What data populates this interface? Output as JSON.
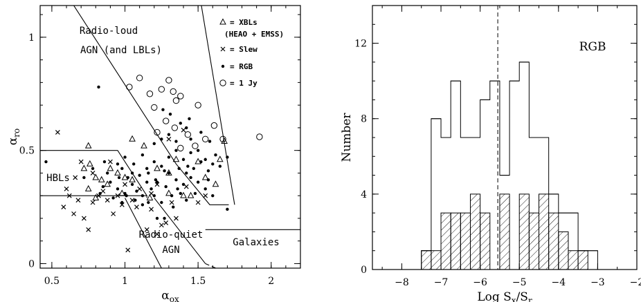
{
  "chart_data": [
    {
      "type": "scatter",
      "xlabel": "α",
      "xlabel_sub": "ox",
      "ylabel": "α",
      "ylabel_sub": "ro",
      "xlim": [
        0.42,
        2.2
      ],
      "ylim": [
        -0.02,
        1.14
      ],
      "xticks": [
        "0.5",
        "1",
        "1.5",
        "2"
      ],
      "yticks": [
        "0",
        "0.5",
        "1"
      ],
      "legend": [
        {
          "symbol": "triangle",
          "label": "= XBLs",
          "sub": "(HEAO + EMSS)"
        },
        {
          "symbol": "cross",
          "label": "= Slew"
        },
        {
          "symbol": "dot",
          "label": "= RGB"
        },
        {
          "symbol": "circle",
          "label": "= 1 Jy"
        }
      ],
      "region_labels": {
        "radio_loud": "Radio-loud",
        "radio_loud_2": "AGN (and LBLs)",
        "hbls": "HBLs",
        "radio_quiet": "Radio-quiet",
        "radio_quiet_2": "AGN",
        "galaxies": "Galaxies"
      },
      "series": [
        {
          "symbol": "circle",
          "points": [
            [
              1.03,
              0.78
            ],
            [
              1.1,
              0.82
            ],
            [
              1.17,
              0.75
            ],
            [
              1.2,
              0.69
            ],
            [
              1.25,
              0.77
            ],
            [
              1.3,
              0.81
            ],
            [
              1.33,
              0.76
            ],
            [
              1.35,
              0.72
            ],
            [
              1.38,
              0.74
            ],
            [
              1.5,
              0.7
            ],
            [
              1.28,
              0.63
            ],
            [
              1.34,
              0.6
            ],
            [
              1.43,
              0.57
            ],
            [
              1.22,
              0.58
            ],
            [
              1.55,
              0.55
            ],
            [
              1.67,
              0.55
            ],
            [
              1.61,
              0.61
            ],
            [
              1.92,
              0.56
            ],
            [
              1.48,
              0.52
            ],
            [
              1.38,
              0.51
            ]
          ]
        },
        {
          "symbol": "dot",
          "points": [
            [
              0.82,
              0.78
            ],
            [
              1.0,
              0.47
            ],
            [
              0.95,
              0.44
            ],
            [
              1.05,
              0.4
            ],
            [
              1.1,
              0.39
            ],
            [
              1.15,
              0.42
            ],
            [
              1.2,
              0.45
            ],
            [
              1.25,
              0.43
            ],
            [
              1.3,
              0.4
            ],
            [
              1.35,
              0.37
            ],
            [
              1.4,
              0.35
            ],
            [
              1.45,
              0.38
            ],
            [
              1.5,
              0.36
            ],
            [
              1.55,
              0.33
            ],
            [
              0.9,
              0.36
            ],
            [
              0.95,
              0.33
            ],
            [
              1.0,
              0.31
            ],
            [
              1.05,
              0.35
            ],
            [
              1.08,
              0.32
            ],
            [
              1.12,
              0.3
            ],
            [
              1.18,
              0.33
            ],
            [
              1.22,
              0.36
            ],
            [
              1.28,
              0.34
            ],
            [
              1.32,
              0.3
            ],
            [
              1.38,
              0.31
            ],
            [
              1.42,
              0.28
            ],
            [
              1.48,
              0.31
            ],
            [
              1.12,
              0.26
            ],
            [
              1.16,
              0.27
            ],
            [
              1.2,
              0.3
            ],
            [
              1.25,
              0.27
            ],
            [
              1.3,
              0.47
            ],
            [
              1.35,
              0.5
            ],
            [
              1.4,
              0.46
            ],
            [
              1.45,
              0.49
            ],
            [
              1.5,
              0.5
            ],
            [
              1.55,
              0.46
            ],
            [
              1.6,
              0.44
            ],
            [
              1.62,
              0.48
            ],
            [
              1.65,
              0.43
            ],
            [
              1.7,
              0.47
            ],
            [
              1.2,
              0.53
            ],
            [
              1.25,
              0.55
            ],
            [
              1.3,
              0.57
            ],
            [
              1.35,
              0.54
            ],
            [
              1.38,
              0.62
            ],
            [
              1.42,
              0.6
            ],
            [
              1.45,
              0.55
            ],
            [
              1.52,
              0.58
            ],
            [
              1.57,
              0.41
            ],
            [
              1.43,
              0.43
            ],
            [
              0.72,
              0.38
            ],
            [
              0.78,
              0.42
            ],
            [
              0.85,
              0.34
            ],
            [
              0.88,
              0.4
            ],
            [
              0.92,
              0.29
            ],
            [
              0.98,
              0.27
            ],
            [
              1.02,
              0.38
            ],
            [
              1.07,
              0.28
            ],
            [
              1.15,
              0.36
            ],
            [
              1.27,
              0.2
            ],
            [
              1.33,
              0.25
            ],
            [
              1.6,
              0.3
            ],
            [
              1.7,
              0.24
            ],
            [
              0.46,
              0.45
            ],
            [
              0.98,
              0.42
            ],
            [
              1.12,
              0.48
            ],
            [
              1.27,
              0.41
            ],
            [
              1.37,
              0.42
            ],
            [
              1.47,
              0.42
            ],
            [
              1.57,
              0.37
            ],
            [
              1.58,
              0.54
            ],
            [
              1.21,
              0.37
            ],
            [
              1.16,
              0.4
            ],
            [
              1.06,
              0.44
            ],
            [
              0.96,
              0.38
            ],
            [
              0.86,
              0.45
            ],
            [
              0.83,
              0.31
            ],
            [
              1.31,
              0.66
            ],
            [
              1.26,
              0.68
            ],
            [
              1.44,
              0.64
            ],
            [
              1.01,
              0.3
            ],
            [
              1.22,
              0.2
            ],
            [
              1.36,
              0.33
            ],
            [
              1.42,
              0.4
            ],
            [
              1.52,
              0.45
            ]
          ]
        },
        {
          "symbol": "triangle",
          "points": [
            [
              0.75,
              0.52
            ],
            [
              0.72,
              0.42
            ],
            [
              0.8,
              0.38
            ],
            [
              0.88,
              0.35
            ],
            [
              0.95,
              0.4
            ],
            [
              1.0,
              0.38
            ],
            [
              1.05,
              0.37
            ],
            [
              0.98,
              0.31
            ],
            [
              0.8,
              0.29
            ],
            [
              0.75,
              0.33
            ],
            [
              0.9,
              0.42
            ],
            [
              1.05,
              0.55
            ],
            [
              1.13,
              0.52
            ],
            [
              1.22,
              0.42
            ],
            [
              1.3,
              0.31
            ],
            [
              1.35,
              0.46
            ],
            [
              1.5,
              0.45
            ],
            [
              1.65,
              0.46
            ],
            [
              1.68,
              0.54
            ],
            [
              1.62,
              0.35
            ],
            [
              1.4,
              0.3
            ],
            [
              0.84,
              0.37
            ],
            [
              0.76,
              0.44
            ],
            [
              1.17,
              0.29
            ],
            [
              1.3,
              0.4
            ],
            [
              1.45,
              0.3
            ],
            [
              1.55,
              0.38
            ]
          ]
        },
        {
          "symbol": "cross",
          "points": [
            [
              0.54,
              0.58
            ],
            [
              0.7,
              0.45
            ],
            [
              0.6,
              0.33
            ],
            [
              0.62,
              0.3
            ],
            [
              0.65,
              0.22
            ],
            [
              0.68,
              0.28
            ],
            [
              0.72,
              0.2
            ],
            [
              0.75,
              0.15
            ],
            [
              0.78,
              0.27
            ],
            [
              0.82,
              0.3
            ],
            [
              0.85,
              0.32
            ],
            [
              0.88,
              0.28
            ],
            [
              0.92,
              0.22
            ],
            [
              0.95,
              0.3
            ],
            [
              0.98,
              0.26
            ],
            [
              1.02,
              0.06
            ],
            [
              1.05,
              0.28
            ],
            [
              1.1,
              0.33
            ],
            [
              1.15,
              0.15
            ],
            [
              1.18,
              0.24
            ],
            [
              1.22,
              0.13
            ],
            [
              1.25,
              0.17
            ],
            [
              1.28,
              0.18
            ],
            [
              1.32,
              0.27
            ],
            [
              1.35,
              0.2
            ],
            [
              1.42,
              0.34
            ],
            [
              1.5,
              0.27
            ],
            [
              1.55,
              0.3
            ],
            [
              1.4,
              0.59
            ],
            [
              1.3,
              0.55
            ],
            [
              0.78,
              0.4
            ],
            [
              0.9,
              0.45
            ],
            [
              1.0,
              0.35
            ],
            [
              1.08,
              0.25
            ],
            [
              1.18,
              0.31
            ],
            [
              1.22,
              0.35
            ],
            [
              0.66,
              0.38
            ],
            [
              0.58,
              0.25
            ]
          ]
        }
      ],
      "boundaries": [
        [
          [
            0.64,
            1.15
          ],
          [
            1.58,
            -0.02
          ]
        ],
        [
          [
            1.52,
            1.15
          ],
          [
            2.2,
            1.15
          ]
        ],
        [
          [
            0.42,
            0.5
          ],
          [
            0.95,
            0.5
          ]
        ],
        [
          [
            0.42,
            0.3
          ],
          [
            1.12,
            0.3
          ]
        ],
        [
          [
            1.05,
            0.29
          ],
          [
            1.28,
            -0.02
          ]
        ],
        [
          [
            1.15,
            0.29
          ],
          [
            1.58,
            -0.02
          ]
        ]
      ]
    },
    {
      "type": "histogram",
      "title": "RGB",
      "xlabel": "Log S",
      "xlabel_sub1": "x",
      "xlabel_mid": "/S",
      "xlabel_sub2": "r",
      "ylabel": "Number",
      "xlim": [
        -8.75,
        -2.0
      ],
      "ylim": [
        0,
        14
      ],
      "xticks": [
        "−8",
        "−7",
        "−6",
        "−5",
        "−4",
        "−3",
        "−2"
      ],
      "yticks": [
        "0",
        "4",
        "8",
        "12"
      ],
      "bin_width": 0.25,
      "bin_starts": [
        -7.5,
        -7.25,
        -7.0,
        -6.75,
        -6.5,
        -6.25,
        -6.0,
        -5.75,
        -5.5,
        -5.25,
        -5.0,
        -4.75,
        -4.5,
        -4.25,
        -4.0,
        -3.75,
        -3.5,
        -3.25
      ],
      "total_counts": [
        1,
        8,
        7,
        10,
        7,
        7,
        9,
        10,
        5,
        10,
        11,
        7,
        7,
        4,
        3,
        3,
        1,
        1
      ],
      "hatched_counts": [
        1,
        1,
        3,
        3,
        3,
        4,
        3,
        0,
        4,
        0,
        4,
        3,
        4,
        3,
        2,
        1,
        1,
        0
      ],
      "dashed_line_x": -5.55
    }
  ]
}
